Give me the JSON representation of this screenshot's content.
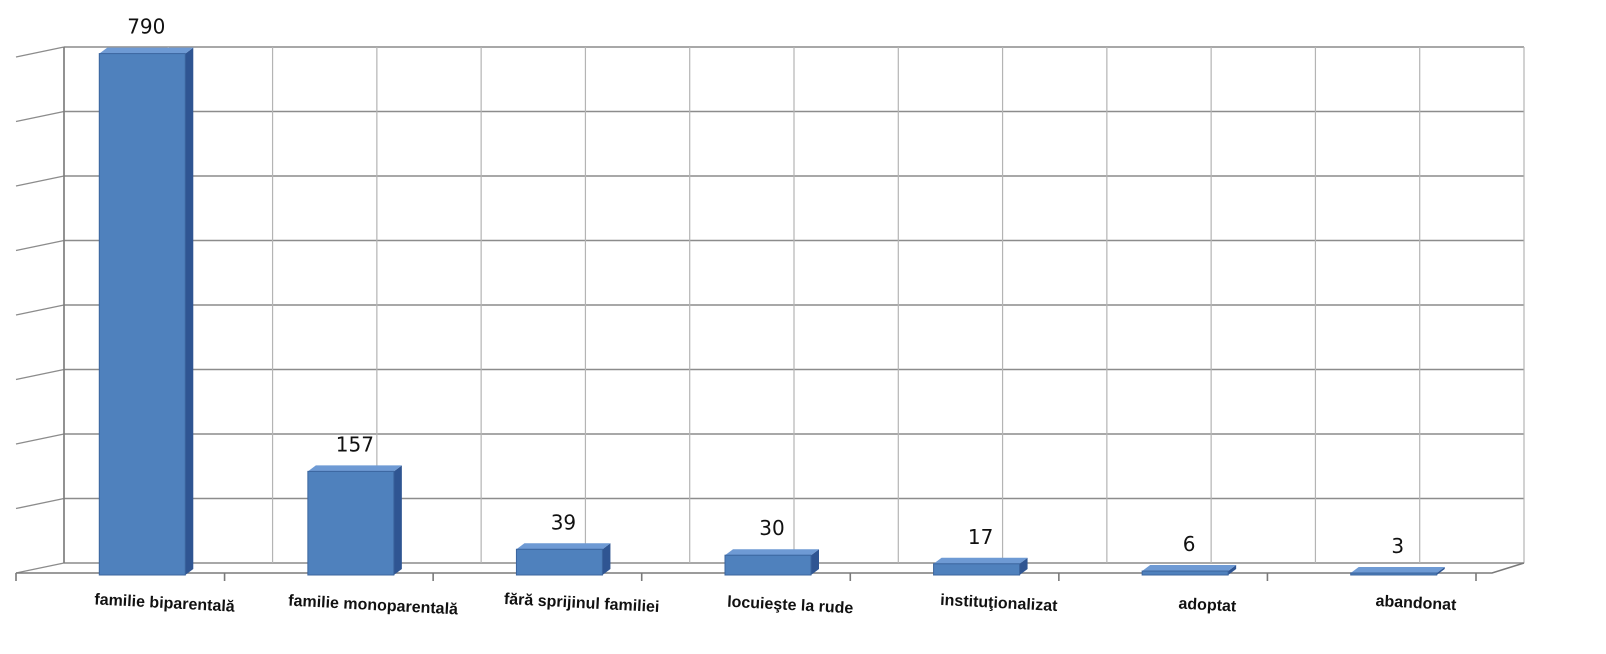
{
  "chart_data": {
    "type": "bar",
    "title": "",
    "xlabel": "",
    "ylabel": "",
    "categories": [
      "familie biparentală",
      "familie monoparentală",
      "fără sprijinul familiei",
      "locuieşte la rude",
      "instituţionalizat",
      "adoptat",
      "abandonat"
    ],
    "values": [
      790,
      157,
      39,
      30,
      17,
      6,
      3
    ],
    "ylim": [
      0,
      800
    ],
    "grid": true,
    "legend": "none",
    "colors": {
      "front": "#4f81bd",
      "side": "#2f5592",
      "top": "#6e9ad4",
      "edge": "#3b659e"
    }
  }
}
